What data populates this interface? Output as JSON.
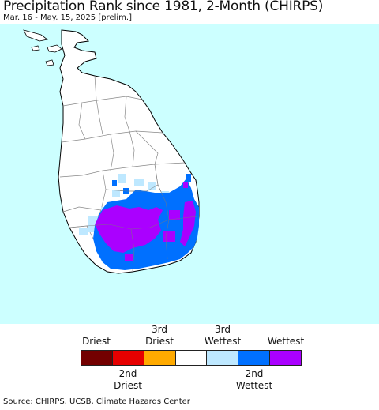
{
  "header": {
    "title": "Precipitation Rank since 1981, 2-Month (CHIRPS)",
    "subtitle": "Mar. 16 - May. 15, 2025 [prelim.]"
  },
  "map": {
    "colors": {
      "ocean": "#ccffff",
      "land": "#ffffff",
      "borders": "#888888",
      "coast": "#000000"
    }
  },
  "legend": {
    "top_labels": [
      {
        "line1": "Driest",
        "line2": ""
      },
      {
        "line1": "3rd",
        "line2": "Driest"
      },
      {
        "line1": "3rd",
        "line2": "Wettest"
      },
      {
        "line1": "Wettest",
        "line2": ""
      }
    ],
    "bottom_labels": [
      {
        "line1": "2nd",
        "line2": "Driest"
      },
      {
        "line1": "2nd",
        "line2": "Wettest"
      }
    ],
    "colors": [
      "#730000",
      "#e60000",
      "#ffaa00",
      "#ffffff",
      "#bee8ff",
      "#0070ff",
      "#aa00ff"
    ]
  },
  "footer": {
    "source": "Source: CHIRPS, UCSB, Climate Hazards Center"
  }
}
